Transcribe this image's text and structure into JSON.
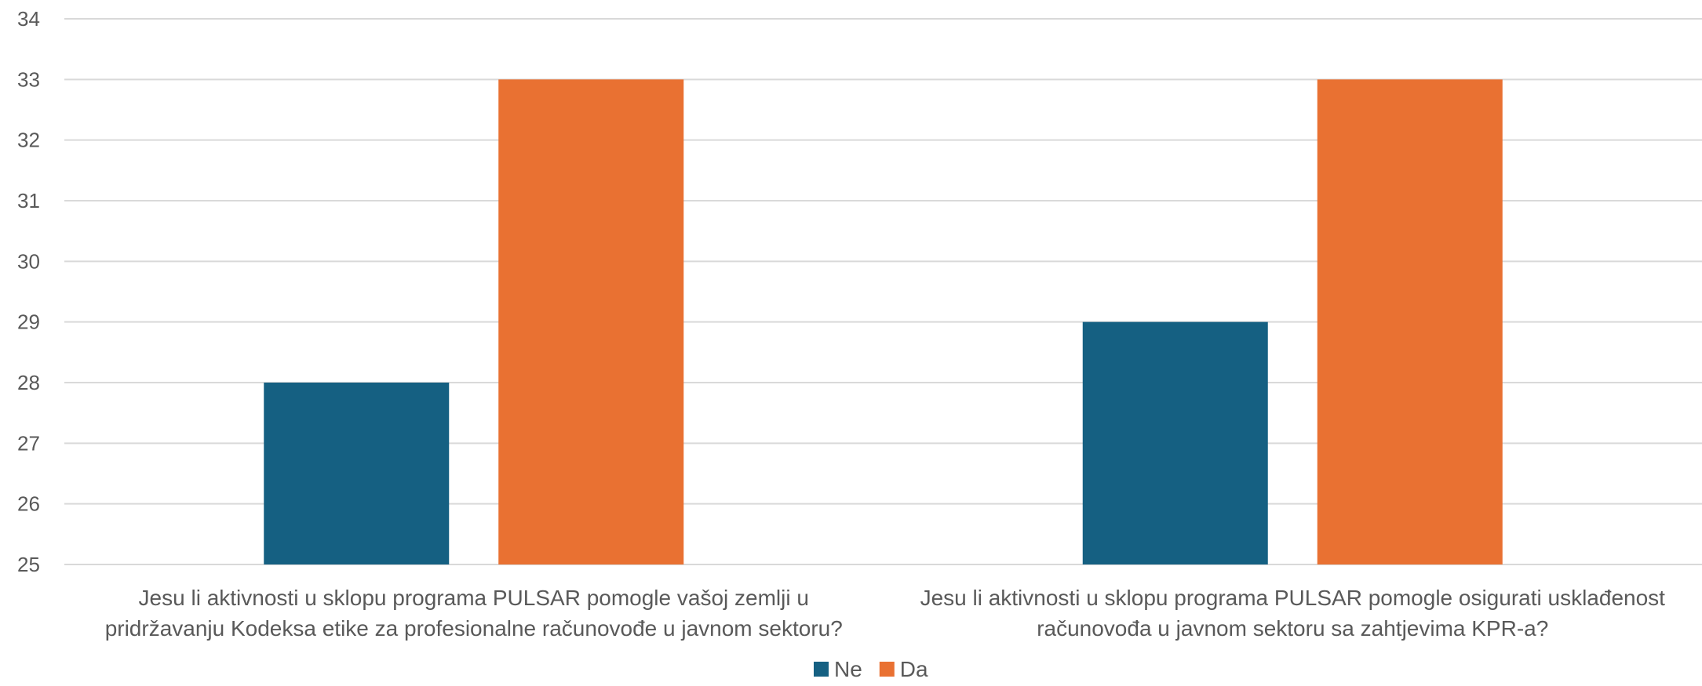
{
  "chart_data": {
    "type": "bar",
    "categories": [
      [
        "Jesu li aktivnosti u sklopu programa PULSAR pomogle vašoj zemlji u",
        "pridržavanju Kodeksa etike za profesionalne računovođe u javnom sektoru?"
      ],
      [
        "Jesu li aktivnosti u sklopu programa PULSAR pomogle osigurati usklađenost",
        "računovođa u javnom sektoru sa zahtjevima KPR-a?"
      ]
    ],
    "series": [
      {
        "name": "Ne",
        "values": [
          28,
          29
        ],
        "color": "#156082"
      },
      {
        "name": "Da",
        "values": [
          33,
          33
        ],
        "color": "#E97132"
      }
    ],
    "title": "",
    "xlabel": "",
    "ylabel": "",
    "ylim": [
      25,
      34
    ],
    "yticks": [
      25,
      26,
      27,
      28,
      29,
      30,
      31,
      32,
      33,
      34
    ],
    "grid": true,
    "legend": "bottom"
  }
}
